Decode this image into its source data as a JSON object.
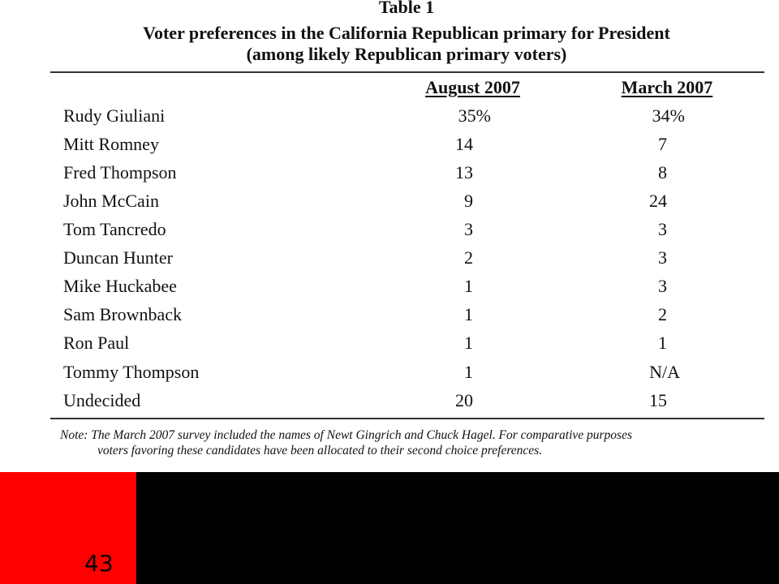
{
  "table": {
    "title": "Table 1",
    "subtitle_line1": "Voter preferences in the California Republican primary for President",
    "subtitle_line2": "(among likely Republican primary voters)",
    "columns": [
      "August 2007",
      "March 2007"
    ],
    "rows": [
      {
        "candidate": "Rudy Giuliani",
        "august": "35%",
        "march": "34%"
      },
      {
        "candidate": "Mitt Romney",
        "august": "14",
        "march": "7"
      },
      {
        "candidate": "Fred Thompson",
        "august": "13",
        "march": "8"
      },
      {
        "candidate": "John McCain",
        "august": "9",
        "march": "24"
      },
      {
        "candidate": "Tom Tancredo",
        "august": "3",
        "march": "3"
      },
      {
        "candidate": "Duncan Hunter",
        "august": "2",
        "march": "3"
      },
      {
        "candidate": "Mike Huckabee",
        "august": "1",
        "march": "3"
      },
      {
        "candidate": "Sam Brownback",
        "august": "1",
        "march": "2"
      },
      {
        "candidate": "Ron Paul",
        "august": "1",
        "march": "1"
      },
      {
        "candidate": "Tommy Thompson",
        "august": "1",
        "march": "N/A"
      },
      {
        "candidate": "Undecided",
        "august": "20",
        "march": "15"
      }
    ],
    "note_line1": "Note: The March 2007 survey included the names of Newt Gingrich and Chuck Hagel.  For comparative purposes",
    "note_line2": "voters favoring these candidates have been allocated to their second choice preferences."
  },
  "slide": {
    "number": "43"
  },
  "colors": {
    "accent_red": "#ff0000",
    "band_black": "#000000"
  }
}
